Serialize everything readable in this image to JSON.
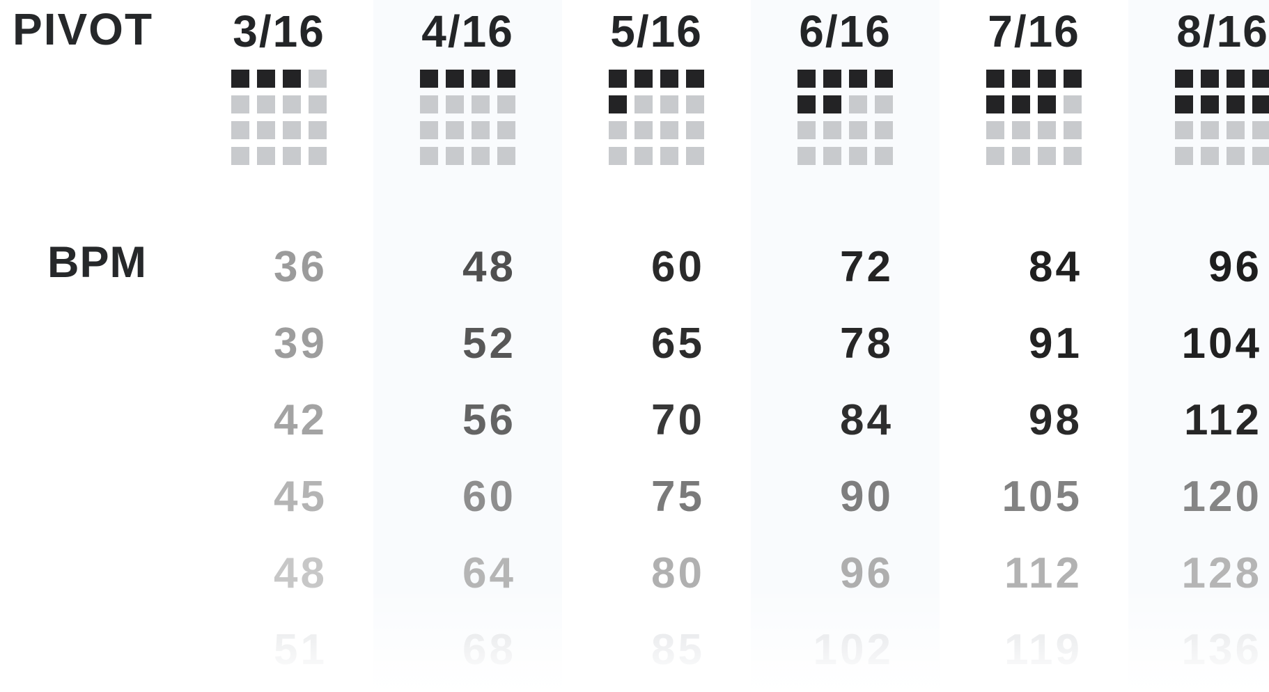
{
  "title": "PIVOT",
  "bpm_label": "BPM",
  "colors": {
    "background": "#ffffff",
    "title_text": "#26282a",
    "header_text": "#232527",
    "square_filled": "#232325",
    "square_empty": "#c8cacd",
    "column_band": "#f9fbfd"
  },
  "chart_data": {
    "type": "table",
    "title": "PIVOT",
    "row_header": "BPM",
    "columns": [
      "3/16",
      "4/16",
      "5/16",
      "6/16",
      "7/16",
      "8/16"
    ],
    "pivot_grid_filled": [
      3,
      4,
      5,
      6,
      7,
      8
    ],
    "pivot_grid_total_cells": 16,
    "pivot_grid_shape": "4x4",
    "rows": [
      [
        36,
        48,
        60,
        72,
        84,
        96
      ],
      [
        39,
        52,
        65,
        78,
        91,
        104
      ],
      [
        42,
        56,
        70,
        84,
        98,
        112
      ],
      [
        45,
        60,
        75,
        90,
        105,
        120
      ],
      [
        48,
        64,
        80,
        96,
        112,
        128
      ],
      [
        51,
        68,
        85,
        102,
        119,
        136
      ]
    ],
    "layout_hints": {
      "banded_columns": [
        "4/16",
        "6/16",
        "8/16"
      ],
      "fade": "values fade toward bottom and left; bottom row dissolves to white"
    }
  },
  "cell_colors": [
    [
      "#9b9b9b",
      "#4f4f4f",
      "#2a2a2a",
      "#242424",
      "#202020",
      "#1e1e1e"
    ],
    [
      "#9d9d9d",
      "#575757",
      "#2c2c2c",
      "#262626",
      "#222222",
      "#202020"
    ],
    [
      "#a3a3a3",
      "#646464",
      "#383838",
      "#2e2e2e",
      "#292929",
      "#262626"
    ],
    [
      "#b4b4b4",
      "#8e8e8e",
      "#7a7a7a",
      "#7e7e7e",
      "#828282",
      "#858585"
    ],
    [
      "#c7c7c7",
      "#b5b5b5",
      "#b0b0b0",
      "#aeaeae",
      "#b2b2b2",
      "#b5b5b5"
    ],
    [
      "#dfe1e3",
      "#dbdde0",
      "#dadce0",
      "#dadce0",
      "#dcdee1",
      "#dddfe2"
    ]
  ]
}
